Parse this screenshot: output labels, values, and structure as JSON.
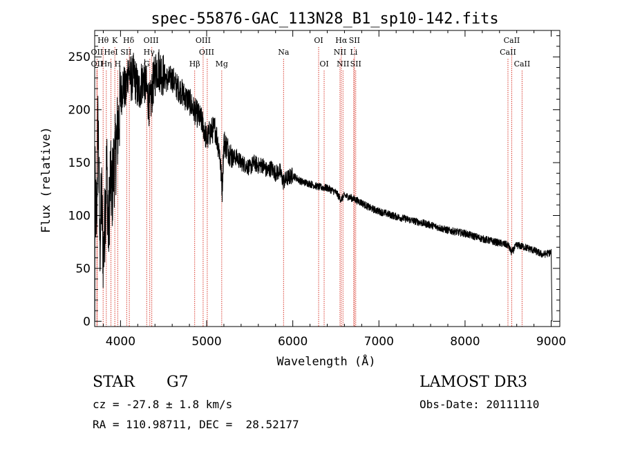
{
  "chart_data": {
    "type": "line",
    "title": "spec-55876-GAC_113N28_B1_sp10-142.fits",
    "xlabel": "Wavelength (Å)",
    "ylabel": "Flux (relative)",
    "xlim": [
      3700,
      9100
    ],
    "ylim": [
      -5,
      275
    ],
    "x_ticks": [
      4000,
      5000,
      6000,
      7000,
      8000,
      9000
    ],
    "y_ticks": [
      0,
      50,
      100,
      150,
      200,
      250
    ],
    "x_tick_labels": [
      "4000",
      "5000",
      "6000",
      "7000",
      "8000",
      "9000"
    ],
    "y_tick_labels": [
      "0",
      "50",
      "100",
      "150",
      "200",
      "250"
    ],
    "series": [
      {
        "name": "flux",
        "x": [
          3700,
          3720,
          3740,
          3760,
          3780,
          3800,
          3820,
          3840,
          3860,
          3880,
          3900,
          3920,
          3940,
          3960,
          3980,
          4000,
          4030,
          4060,
          4090,
          4120,
          4150,
          4180,
          4210,
          4240,
          4270,
          4300,
          4340,
          4380,
          4420,
          4460,
          4500,
          4550,
          4600,
          4650,
          4700,
          4750,
          4800,
          4850,
          4900,
          4950,
          5000,
          5050,
          5100,
          5150,
          5180,
          5200,
          5250,
          5300,
          5350,
          5400,
          5450,
          5500,
          5550,
          5600,
          5650,
          5700,
          5750,
          5800,
          5850,
          5890,
          5950,
          6000,
          6100,
          6200,
          6300,
          6400,
          6500,
          6560,
          6600,
          6700,
          6800,
          6900,
          7000,
          7200,
          7400,
          7600,
          7800,
          8000,
          8200,
          8400,
          8500,
          8540,
          8600,
          8700,
          8800,
          8900,
          9000,
          9010
        ],
        "values": [
          140,
          85,
          195,
          70,
          120,
          60,
          100,
          150,
          80,
          135,
          120,
          145,
          155,
          175,
          190,
          210,
          225,
          215,
          240,
          228,
          232,
          226,
          215,
          225,
          230,
          220,
          202,
          225,
          240,
          238,
          232,
          228,
          230,
          222,
          218,
          212,
          208,
          200,
          195,
          188,
          172,
          180,
          182,
          160,
          125,
          170,
          162,
          155,
          155,
          150,
          148,
          145,
          150,
          147,
          148,
          142,
          145,
          140,
          142,
          132,
          136,
          138,
          132,
          130,
          127,
          126,
          122,
          115,
          119,
          116,
          112,
          107,
          104,
          99,
          95,
          91,
          86,
          83,
          78,
          74,
          72,
          65,
          72,
          70,
          67,
          63,
          65,
          0
        ]
      }
    ],
    "line_markers": [
      {
        "label": "Hθ",
        "x": 3798,
        "row": 1,
        "label_offset": 0
      },
      {
        "label": "K",
        "x": 3934,
        "row": 1,
        "label_offset": 0
      },
      {
        "label": "Hδ",
        "x": 4102,
        "row": 1,
        "label_offset": -1
      },
      {
        "label": "OIII",
        "x": 4363,
        "row": 1,
        "label_offset": -1
      },
      {
        "label": "OIII",
        "x": 4959,
        "row": 1,
        "label_offset": 0
      },
      {
        "label": "OI",
        "x": 6300,
        "row": 1,
        "label_offset": 0
      },
      {
        "label": "Hα",
        "x": 6563,
        "row": 1,
        "label_offset": 0
      },
      {
        "label": "SII",
        "x": 6716,
        "row": 1,
        "label_offset": 0
      },
      {
        "label": "CaII",
        "x": 8542,
        "row": 1,
        "label_offset": 0
      },
      {
        "label": "OII",
        "x": 3727,
        "row": 2,
        "label_offset": 0
      },
      {
        "label": "HeI",
        "x": 3889,
        "row": 2,
        "label_offset": 0
      },
      {
        "label": "SII",
        "x": 4072,
        "row": 2,
        "label_offset": -1
      },
      {
        "label": "Hγ",
        "x": 4340,
        "row": 2,
        "label_offset": -1
      },
      {
        "label": "OIII",
        "x": 5007,
        "row": 2,
        "label_offset": -1
      },
      {
        "label": "Na",
        "x": 5893,
        "row": 2,
        "label_offset": 0
      },
      {
        "label": "NII",
        "x": 6548,
        "row": 2,
        "label_offset": 0
      },
      {
        "label": "Li",
        "x": 6708,
        "row": 2,
        "label_offset": 0
      },
      {
        "label": "CaII",
        "x": 8498,
        "row": 2,
        "label_offset": 0
      },
      {
        "label": "OII",
        "x": 3727,
        "row": 3,
        "label_offset": 0
      },
      {
        "label": "Hη",
        "x": 3835,
        "row": 3,
        "label_offset": 0
      },
      {
        "label": "H",
        "x": 3968,
        "row": 3,
        "label_offset": 0
      },
      {
        "label": "G",
        "x": 4304,
        "row": 3,
        "label_offset": 0
      },
      {
        "label": "Hβ",
        "x": 4861,
        "row": 3,
        "label_offset": 0
      },
      {
        "label": "Mg",
        "x": 5175,
        "row": 3,
        "label_offset": 0
      },
      {
        "label": "OI",
        "x": 6364,
        "row": 3,
        "label_offset": 0
      },
      {
        "label": "NII",
        "x": 6583,
        "row": 3,
        "label_offset": 0
      },
      {
        "label": "SII",
        "x": 6731,
        "row": 3,
        "label_offset": 0
      },
      {
        "label": "CaII",
        "x": 8662,
        "row": 3,
        "label_offset": 0
      }
    ]
  },
  "info": {
    "object_class": "STAR",
    "subclass": "G7",
    "survey": "LAMOST DR3",
    "redshift": "cz = -27.8 ± 1.8 km/s",
    "obs_date": "Obs-Date: 20111110",
    "coords": "RA = 110.98711, DEC =  28.52177"
  },
  "colors": {
    "axis": "#000000",
    "spectrum": "#000000",
    "marker_line": "#d8362a",
    "background": "#ffffff"
  }
}
